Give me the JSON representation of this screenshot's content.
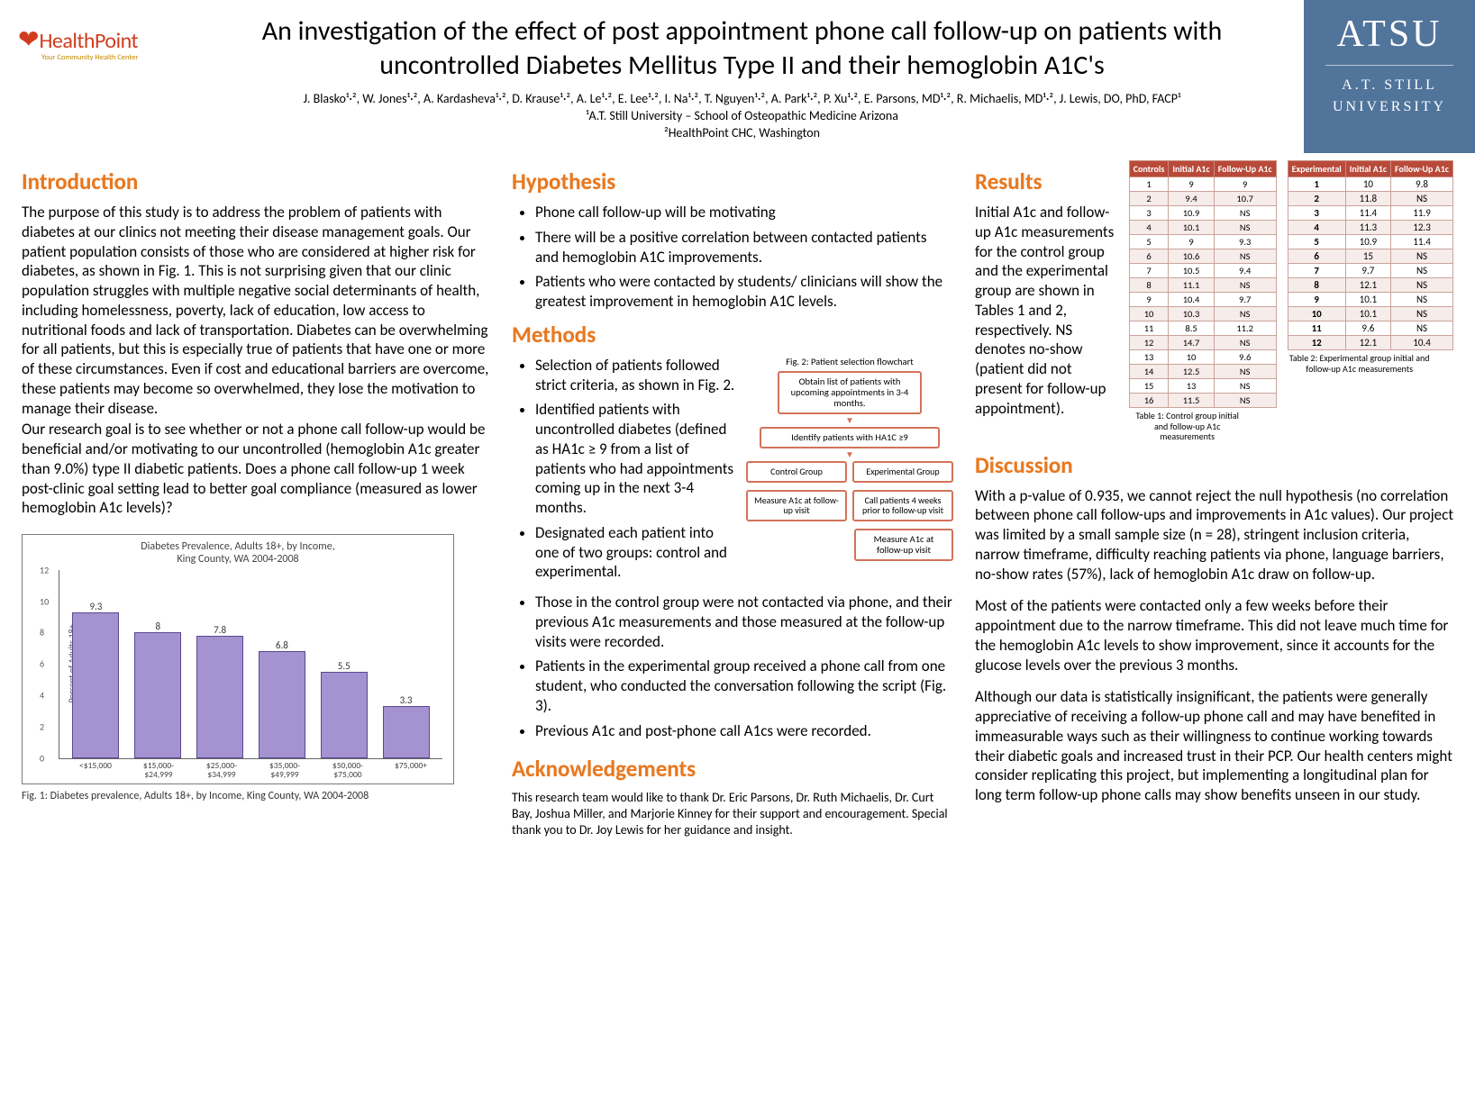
{
  "logos": {
    "healthpoint": {
      "name": "HealthPoint",
      "tagline": "Your Community Health Center",
      "heart_color": "#d23c1e",
      "text_color": "#d23c1e",
      "tag_color": "#c28a00"
    },
    "atsu": {
      "top": "ATSU",
      "bottom_l1": "A.T. STILL",
      "bottom_l2": "UNIVERSITY",
      "bg_color": "#51749b",
      "text_color": "#ffffff"
    }
  },
  "title": "An investigation of the effect of post appointment phone call follow-up on patients with uncontrolled Diabetes Mellitus Type II and their hemoglobin A1C's",
  "authors": "J. Blasko¹·², W. Jones¹·², A. Kardasheva¹·², D. Krause¹·², A. Le¹·², E. Lee¹·², I. Na¹·², T. Nguyen¹·², A. Park¹·², P. Xu¹·²,  E. Parsons, MD¹·²,  R. Michaelis, MD¹·², J. Lewis, DO, PhD, FACP¹",
  "affiliations": {
    "l1": "¹A.T. Still University – School of Osteopathic Medicine Arizona",
    "l2": "²HealthPoint CHC, Washington"
  },
  "section_color": "#e8781f",
  "introduction": {
    "heading": "Introduction",
    "p1": "The purpose of this study is to address the problem of patients with diabetes at our clinics not meeting their disease management goals. Our patient population consists of those who are considered at higher risk for diabetes, as shown in Fig. 1. This is not surprising given that our clinic population struggles with multiple negative social determinants of health, including homelessness, poverty, lack of education, low access to nutritional foods and lack of transportation. Diabetes can be overwhelming for all patients, but this is especially true of patients that have one or more of these circumstances. Even if cost and educational barriers are overcome, these patients may become so overwhelmed, they lose the motivation to manage their disease.",
    "p2": "Our research goal is to see whether or not a phone call follow-up would be beneficial and/or motivating to our uncontrolled (hemoglobin A1c greater than 9.0%) type II diabetic patients. Does a phone call follow-up 1 week post-clinic goal setting lead to better goal compliance (measured as lower hemoglobin A1c levels)?"
  },
  "fig1": {
    "title_l1": "Diabetes Prevalence, Adults 18+, by Income,",
    "title_l2": "King County, WA 2004-2008",
    "ylabel": "Percent of Adults 18+",
    "ylim": [
      0,
      12
    ],
    "ytick_step": 2,
    "categories": [
      "<$15,000",
      "$15,000-$24,999",
      "$25,000-$34,999",
      "$35,000-$49,999",
      "$50,000-$75,000",
      "$75,000+"
    ],
    "values": [
      9.3,
      8.0,
      7.8,
      6.8,
      5.5,
      3.3
    ],
    "bar_color": "#a593d1",
    "bar_border": "#5a4891",
    "caption": "Fig. 1: Diabetes prevalence, Adults 18+, by Income, King County, WA 2004-2008"
  },
  "hypothesis": {
    "heading": "Hypothesis",
    "items": [
      "Phone call follow-up will be motivating",
      "There will be a positive correlation between contacted patients and hemoglobin A1C improvements.",
      "Patients who were contacted by students/ clinicians will show the greatest improvement in hemoglobin A1C levels."
    ]
  },
  "methods": {
    "heading": "Methods",
    "items_top": [
      "Selection of patients followed strict criteria, as shown in Fig. 2.",
      "Identified patients with uncontrolled diabetes (defined as HA1c ≥ 9 from a list of patients who had appointments coming up in the next 3-4 months.",
      "Designated each patient into one of two groups: control and experimental."
    ],
    "items_bottom": [
      "Those in the control group were not contacted via phone, and their previous A1c measurements and those measured at the follow-up visits were recorded.",
      "Patients in the experimental group received a phone call from one student, who conducted the conversation following the script (Fig. 3).",
      "Previous A1c and post-phone call A1cs were recorded."
    ]
  },
  "flowchart": {
    "title": "Fig. 2: Patient selection flowchart",
    "border_color": "#d2735a",
    "n1": "Obtain list of patients with upcoming appointments in 3-4 months.",
    "n2": "Identify patients with HA1C ≥9",
    "n3a": "Control Group",
    "n3b": "Experimental Group",
    "n4a": "Measure A1c at follow-up visit",
    "n4b": "Call patients 4 weeks prior to follow-up visit",
    "n5": "Measure A1c at follow-up visit"
  },
  "ack": {
    "heading": "Acknowledgements",
    "text": "This research team would like to thank Dr. Eric Parsons, Dr. Ruth Michaelis, Dr. Curt Bay, Joshua Miller, and Marjorie Kinney for their support and encouragement. Special thank you to Dr. Joy Lewis for her guidance and insight."
  },
  "results": {
    "heading": "Results",
    "text": "Initial A1c and follow-up A1c measurements for the control group and the experimental group are shown in Tables 1 and 2, respectively. NS denotes no-show (patient did not present for follow-up appointment)."
  },
  "table1": {
    "header": [
      "Controls",
      "Initial A1c",
      "Follow-Up A1c"
    ],
    "header_bg": "#b94a3a",
    "header_fg": "#ffffff",
    "row_alt_bg": "#f6ece9",
    "border_color": "#caa39b",
    "rows": [
      [
        "1",
        "9",
        "9"
      ],
      [
        "2",
        "9.4",
        "10.7"
      ],
      [
        "3",
        "10.9",
        "NS"
      ],
      [
        "4",
        "10.1",
        "NS"
      ],
      [
        "5",
        "9",
        "9.3"
      ],
      [
        "6",
        "10.6",
        "NS"
      ],
      [
        "7",
        "10.5",
        "9.4"
      ],
      [
        "8",
        "11.1",
        "NS"
      ],
      [
        "9",
        "10.4",
        "9.7"
      ],
      [
        "10",
        "10.3",
        "NS"
      ],
      [
        "11",
        "8.5",
        "11.2"
      ],
      [
        "12",
        "14.7",
        "NS"
      ],
      [
        "13",
        "10",
        "9.6"
      ],
      [
        "14",
        "12.5",
        "NS"
      ],
      [
        "15",
        "13",
        "NS"
      ],
      [
        "16",
        "11.5",
        "NS"
      ]
    ],
    "caption": "Table 1: Control group initial and follow-up A1c measurements"
  },
  "table2": {
    "header": [
      "Experimental",
      "Initial A1c",
      "Follow-Up A1c"
    ],
    "rows": [
      [
        "1",
        "10",
        "9.8"
      ],
      [
        "2",
        "11.8",
        "NS"
      ],
      [
        "3",
        "11.4",
        "11.9"
      ],
      [
        "4",
        "11.3",
        "12.3"
      ],
      [
        "5",
        "10.9",
        "11.4"
      ],
      [
        "6",
        "15",
        "NS"
      ],
      [
        "7",
        "9.7",
        "NS"
      ],
      [
        "8",
        "12.1",
        "NS"
      ],
      [
        "9",
        "10.1",
        "NS"
      ],
      [
        "10",
        "10.1",
        "NS"
      ],
      [
        "11",
        "9.6",
        "NS"
      ],
      [
        "12",
        "12.1",
        "10.4"
      ]
    ],
    "caption": "Table 2: Experimental group initial and follow-up A1c measurements"
  },
  "discussion": {
    "heading": "Discussion",
    "p1": "With a p-value of 0.935, we cannot reject the null hypothesis (no correlation between phone call follow-ups and improvements in A1c values). Our project was limited by a small sample size (n = 28), stringent inclusion criteria, narrow timeframe, difficulty reaching patients via phone, language barriers, no-show rates (57%), lack of hemoglobin A1c draw on follow-up.",
    "p2": "Most of the patients were contacted only a few weeks before their appointment due to the narrow timeframe. This did not leave much time for the hemoglobin A1c levels to show improvement, since it accounts for the glucose levels over the previous 3 months.",
    "p3": "Although our data is statistically insignificant, the patients were generally appreciative of receiving a follow-up phone call and may have benefited in immeasurable ways such as their willingness to continue working towards their diabetic goals and increased trust in their PCP. Our health centers might consider replicating this project, but implementing a longitudinal plan for long term follow-up phone calls may show benefits unseen in our study."
  }
}
